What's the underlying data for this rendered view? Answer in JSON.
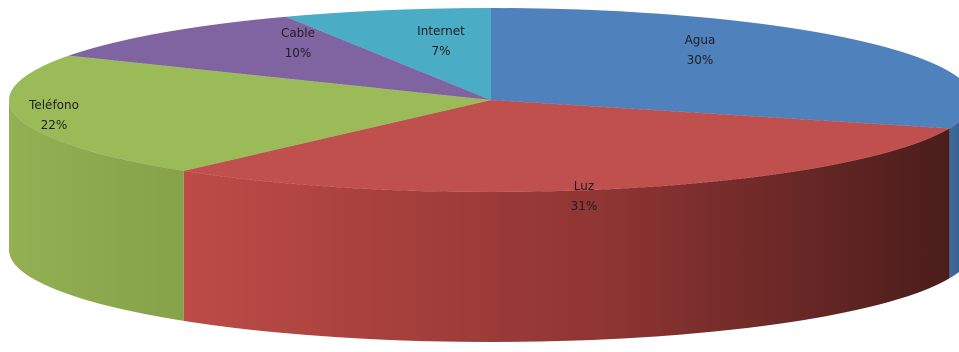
{
  "chart_data": {
    "type": "pie",
    "style": "3d",
    "title": "",
    "legend": "none",
    "slices": [
      {
        "label": "Agua",
        "percent_label": "30%",
        "value": 30,
        "color": "#4f81bd"
      },
      {
        "label": "Luz",
        "percent_label": "31%",
        "value": 31,
        "color": "#c0504d"
      },
      {
        "label": "Teléfono",
        "percent_label": "22%",
        "value": 22,
        "color": "#9bbb59"
      },
      {
        "label": "Cable",
        "percent_label": "10%",
        "value": 10,
        "color": "#8064a2"
      },
      {
        "label": "Internet",
        "percent_label": "7%",
        "value": 7,
        "color": "#4bacc6"
      }
    ]
  }
}
